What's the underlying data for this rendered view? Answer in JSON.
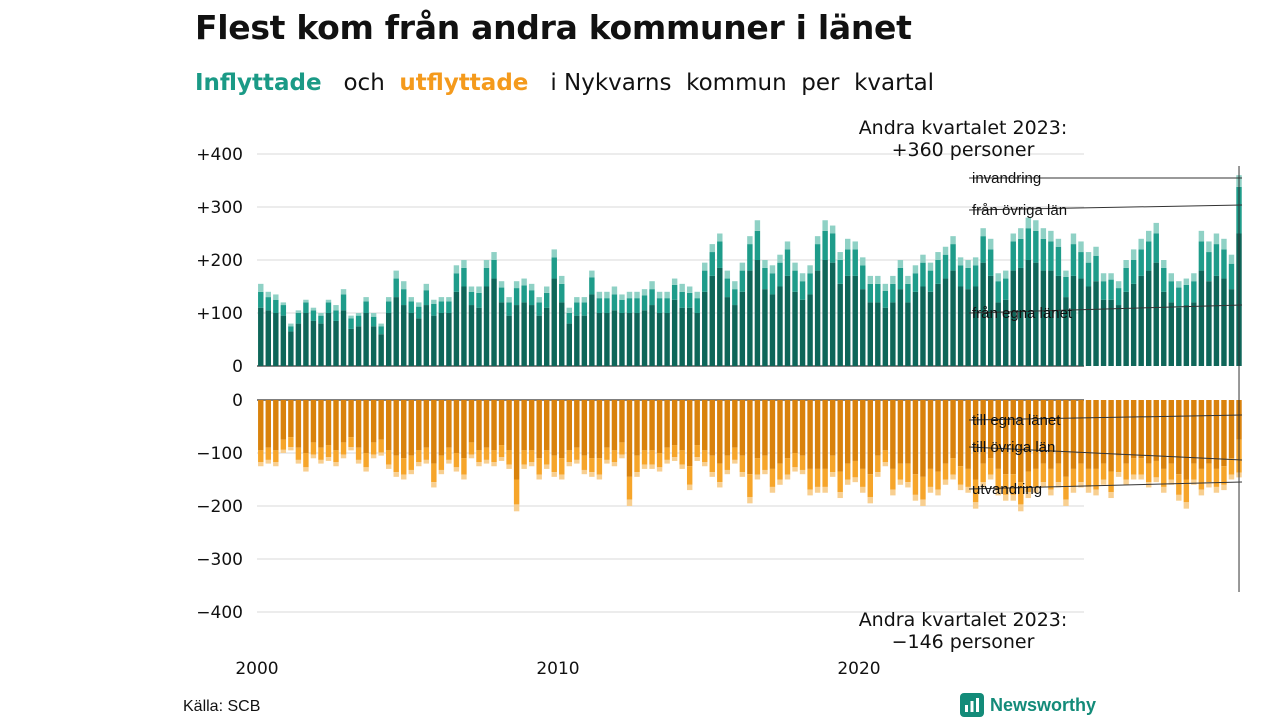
{
  "title": "Flest kom från andra kommuner i länet",
  "subtitle": {
    "in_label": "Inflyttade",
    "and": "och",
    "out_label": "utflyttade",
    "rest": "i Nykvarns  kommun  per  kvartal"
  },
  "source": "Källa: SCB",
  "logo_text": "Newsworthy",
  "colors": {
    "in_egna": "#0e6659",
    "in_ovriga": "#1e9c8a",
    "in_invandring": "#8fd1c5",
    "out_egna": "#d9820c",
    "out_ovriga": "#f6a52a",
    "out_utvandring": "#f8cf90",
    "grid": "#d9d9d9"
  },
  "chart_data": {
    "type": "bar",
    "stacked": true,
    "x_ticks": [
      "2000",
      "2010",
      "2020"
    ],
    "y_ticks_top": [
      "+400",
      "+300",
      "+200",
      "+100",
      "0"
    ],
    "y_ticks_bottom": [
      "0",
      "−100",
      "−200",
      "−300",
      "−400"
    ],
    "ylim_top": [
      0,
      400
    ],
    "ylim_bottom": [
      -400,
      0
    ],
    "series_labels": {
      "in_invandring": "invandring",
      "in_ovriga": "från övriga län",
      "in_egna": "från egna länet",
      "out_egna": "till egna länet",
      "out_ovriga": "till övriga län",
      "out_utvandring": "utvandring"
    },
    "annotation_top": [
      "Andra kvartalet 2023:",
      "+360 personer"
    ],
    "annotation_bottom": [
      "Andra kvartalet 2023:",
      "−146 personer"
    ],
    "start_year": 2000,
    "in_totals": [
      155,
      140,
      135,
      120,
      80,
      105,
      125,
      110,
      100,
      125,
      115,
      145,
      95,
      100,
      130,
      100,
      80,
      130,
      180,
      160,
      130,
      120,
      155,
      125,
      130,
      130,
      190,
      200,
      150,
      150,
      200,
      215,
      160,
      130,
      160,
      165,
      155,
      130,
      150,
      220,
      170,
      110,
      130,
      130,
      180,
      140,
      140,
      150,
      135,
      140,
      140,
      145,
      160,
      140,
      140,
      165,
      155,
      150,
      140,
      195,
      230,
      250,
      180,
      160,
      195,
      245,
      275,
      200,
      190,
      210,
      235,
      195,
      175,
      190,
      245,
      275,
      265,
      215,
      240,
      235,
      205,
      170,
      170,
      155,
      170,
      200,
      170,
      190,
      210,
      195,
      215,
      225,
      245,
      205,
      200,
      205,
      260,
      240,
      175,
      180,
      250,
      260,
      280,
      275,
      260,
      255,
      240,
      180,
      250,
      235,
      215,
      225,
      175,
      175,
      160,
      200,
      220,
      240,
      255,
      270,
      200,
      175,
      160,
      165,
      175,
      255,
      235,
      250,
      240,
      210,
      360
    ],
    "in_egna": [
      110,
      105,
      100,
      95,
      65,
      80,
      100,
      85,
      80,
      100,
      85,
      105,
      70,
      75,
      100,
      75,
      60,
      100,
      130,
      115,
      100,
      90,
      115,
      95,
      100,
      100,
      140,
      150,
      115,
      110,
      150,
      165,
      120,
      95,
      115,
      120,
      115,
      95,
      110,
      165,
      120,
      80,
      95,
      95,
      135,
      100,
      100,
      105,
      100,
      100,
      100,
      105,
      115,
      100,
      100,
      125,
      110,
      110,
      100,
      140,
      170,
      185,
      130,
      115,
      140,
      180,
      200,
      145,
      135,
      150,
      170,
      140,
      125,
      135,
      180,
      200,
      195,
      155,
      170,
      170,
      145,
      120,
      120,
      110,
      120,
      145,
      120,
      140,
      150,
      140,
      155,
      165,
      180,
      150,
      145,
      150,
      195,
      170,
      120,
      125,
      180,
      185,
      200,
      195,
      180,
      180,
      170,
      130,
      170,
      165,
      150,
      160,
      125,
      125,
      115,
      140,
      155,
      170,
      180,
      195,
      140,
      120,
      110,
      115,
      120,
      180,
      160,
      170,
      165,
      145,
      250
    ],
    "in_ovriga": [
      30,
      25,
      25,
      20,
      10,
      20,
      20,
      20,
      15,
      20,
      20,
      30,
      20,
      20,
      22,
      18,
      15,
      22,
      35,
      30,
      22,
      22,
      28,
      22,
      22,
      22,
      35,
      35,
      25,
      28,
      35,
      35,
      28,
      25,
      32,
      32,
      28,
      25,
      28,
      40,
      35,
      20,
      25,
      25,
      32,
      28,
      28,
      30,
      25,
      28,
      28,
      28,
      30,
      28,
      28,
      28,
      30,
      28,
      28,
      40,
      45,
      50,
      35,
      30,
      40,
      50,
      55,
      40,
      40,
      45,
      50,
      40,
      35,
      40,
      50,
      55,
      55,
      45,
      50,
      50,
      45,
      35,
      35,
      32,
      35,
      40,
      35,
      35,
      45,
      40,
      45,
      45,
      50,
      40,
      40,
      40,
      50,
      50,
      40,
      40,
      55,
      55,
      60,
      60,
      60,
      55,
      55,
      38,
      60,
      50,
      45,
      48,
      35,
      38,
      32,
      45,
      45,
      50,
      55,
      55,
      45,
      40,
      38,
      38,
      40,
      55,
      55,
      60,
      55,
      48,
      88
    ],
    "out_totals": [
      125,
      120,
      125,
      100,
      95,
      120,
      135,
      110,
      120,
      115,
      125,
      110,
      95,
      120,
      135,
      110,
      105,
      130,
      145,
      150,
      140,
      125,
      120,
      165,
      140,
      120,
      135,
      150,
      110,
      125,
      120,
      125,
      115,
      130,
      210,
      130,
      125,
      150,
      130,
      145,
      150,
      125,
      120,
      140,
      145,
      150,
      120,
      125,
      110,
      200,
      145,
      130,
      130,
      135,
      120,
      115,
      130,
      170,
      115,
      125,
      145,
      165,
      140,
      120,
      145,
      195,
      150,
      140,
      175,
      160,
      150,
      135,
      140,
      180,
      175,
      175,
      145,
      185,
      160,
      155,
      175,
      195,
      145,
      125,
      180,
      160,
      165,
      190,
      200,
      175,
      180,
      160,
      150,
      170,
      175,
      205,
      165,
      150,
      180,
      190,
      190,
      210,
      185,
      175,
      165,
      180,
      165,
      200,
      175,
      165,
      175,
      180,
      160,
      185,
      145,
      160,
      150,
      150,
      165,
      155,
      175,
      160,
      190,
      205,
      160,
      180,
      165,
      175,
      170,
      150,
      146
    ],
    "out_egna": [
      95,
      90,
      95,
      75,
      70,
      90,
      100,
      80,
      90,
      85,
      95,
      80,
      70,
      90,
      100,
      80,
      75,
      95,
      105,
      110,
      105,
      95,
      90,
      120,
      105,
      90,
      100,
      110,
      80,
      95,
      90,
      95,
      85,
      95,
      150,
      95,
      95,
      110,
      95,
      105,
      110,
      95,
      90,
      105,
      110,
      110,
      90,
      95,
      80,
      145,
      105,
      95,
      95,
      100,
      90,
      85,
      95,
      125,
      85,
      95,
      105,
      120,
      105,
      90,
      105,
      140,
      110,
      105,
      130,
      120,
      110,
      100,
      105,
      130,
      130,
      130,
      105,
      135,
      120,
      115,
      130,
      140,
      105,
      95,
      130,
      120,
      120,
      140,
      145,
      130,
      135,
      120,
      110,
      125,
      130,
      150,
      120,
      110,
      130,
      140,
      140,
      155,
      135,
      130,
      120,
      130,
      120,
      145,
      130,
      120,
      130,
      130,
      120,
      135,
      105,
      120,
      110,
      110,
      120,
      115,
      130,
      120,
      140,
      150,
      120,
      130,
      120,
      130,
      125,
      110,
      75
    ],
    "out_utv_frac": 0.06
  }
}
